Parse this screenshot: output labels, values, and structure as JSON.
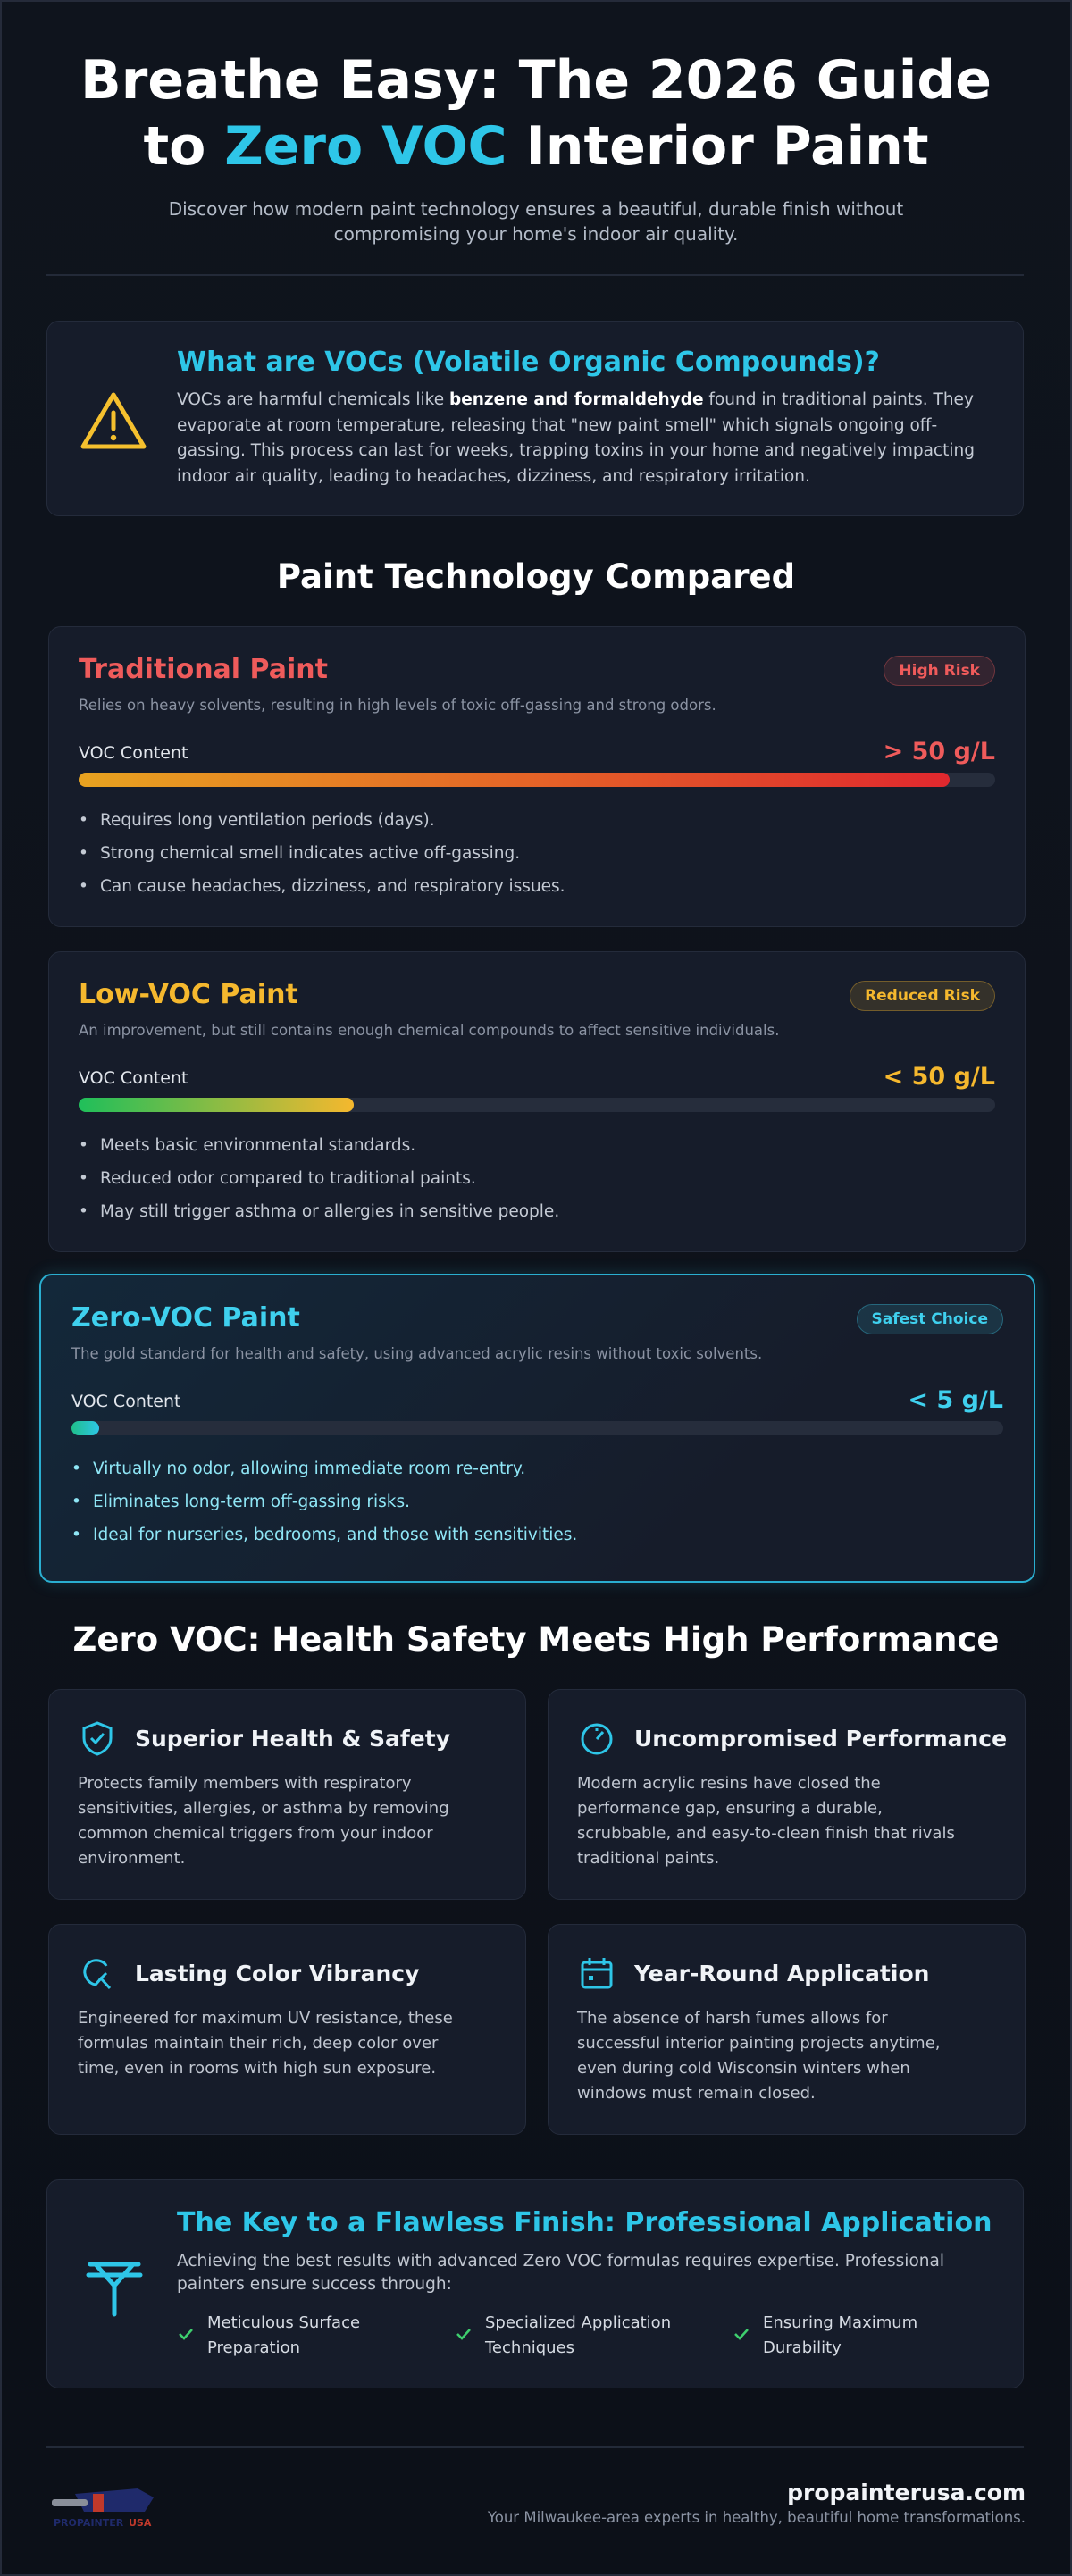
{
  "header": {
    "title_parts": [
      "Breathe Easy: The 2026 Guide",
      "to ",
      "Zero VOC",
      " Interior Paint"
    ],
    "subtitle": "Discover how modern paint technology ensures a beautiful, durable finish without compromising your home's indoor air quality."
  },
  "intro": {
    "title": "What are VOCs (Volatile Organic Compounds)?",
    "text_parts": [
      "VOCs are harmful chemicals like ",
      "benzene and formaldehyde",
      " found in traditional paints. They evaporate at room temperature, releasing that \"new paint smell\" which signals ongoing off-gassing. This process can last for weeks, trapping toxins in your home and negatively impacting indoor air quality, leading to headaches, dizziness, and respiratory irritation."
    ]
  },
  "comparison": {
    "title": "Paint Technology Compared",
    "cards": [
      {
        "name": "Traditional Paint",
        "badge": "High Risk",
        "description": "Relies on heavy solvents, resulting in high levels of toxic off-gassing and strong odors.",
        "meter_label": "VOC Content",
        "meter_value": "> 50 g/L",
        "meter_fill": 95,
        "color": "#ef5b5b",
        "points": [
          "Requires long ventilation periods (days).",
          "Strong chemical smell indicates active off-gassing.",
          "Can cause headaches, dizziness, and respiratory issues."
        ]
      },
      {
        "name": "Low-VOC Paint",
        "badge": "Reduced Risk",
        "description": "An improvement, but still contains enough chemical compounds to affect sensitive individuals.",
        "meter_label": "VOC Content",
        "meter_value": "< 50 g/L",
        "meter_fill": 30,
        "color": "#f5b82e",
        "points": [
          "Meets basic environmental standards.",
          "Reduced odor compared to traditional paints.",
          "May still trigger asthma or allergies in sensitive people."
        ]
      },
      {
        "name": "Zero-VOC Paint",
        "badge": "Safest Choice",
        "description": "The gold standard for health and safety, using advanced acrylic resins without toxic solvents.",
        "meter_label": "VOC Content",
        "meter_value": "< 5 g/L",
        "meter_fill": 3,
        "color": "#3fd0ee",
        "points": [
          "Virtually no odor, allowing immediate room re-entry.",
          "Eliminates long-term off-gassing risks.",
          "Ideal for nurseries, bedrooms, and those with sensitivities."
        ]
      }
    ]
  },
  "benefits": {
    "title": "Zero VOC: Health Safety Meets High Performance",
    "items": [
      {
        "title": "Superior Health & Safety",
        "text": "Protects family members with respiratory sensitivities, allergies, or asthma by removing common chemical triggers from your indoor environment."
      },
      {
        "title": "Uncompromised Performance",
        "text": "Modern acrylic resins have closed the performance gap, ensuring a durable, scrubbable, and easy-to-clean finish that rivals traditional paints."
      },
      {
        "title": "Lasting Color Vibrancy",
        "text": "Engineered for maximum UV resistance, these formulas maintain their rich, deep color over time, even in rooms with high sun exposure."
      },
      {
        "title": "Year-Round Application",
        "text": "The absence of harsh fumes allows for successful interior painting projects anytime, even during cold Wisconsin winters when windows must remain closed."
      }
    ]
  },
  "professional": {
    "title": "The Key to a Flawless Finish: Professional Application",
    "text": "Achieving the best results with advanced Zero VOC formulas requires expertise. Professional painters ensure success through:",
    "points": [
      "Meticulous Surface Preparation",
      "Specialized Application Techniques",
      "Ensuring Maximum Durability"
    ]
  },
  "footer": {
    "logo_parts": [
      "PROPAINTER",
      "USA"
    ],
    "site": "propainterusa.com",
    "tagline": "Your Milwaukee-area experts in healthy, beautiful home transformations."
  }
}
